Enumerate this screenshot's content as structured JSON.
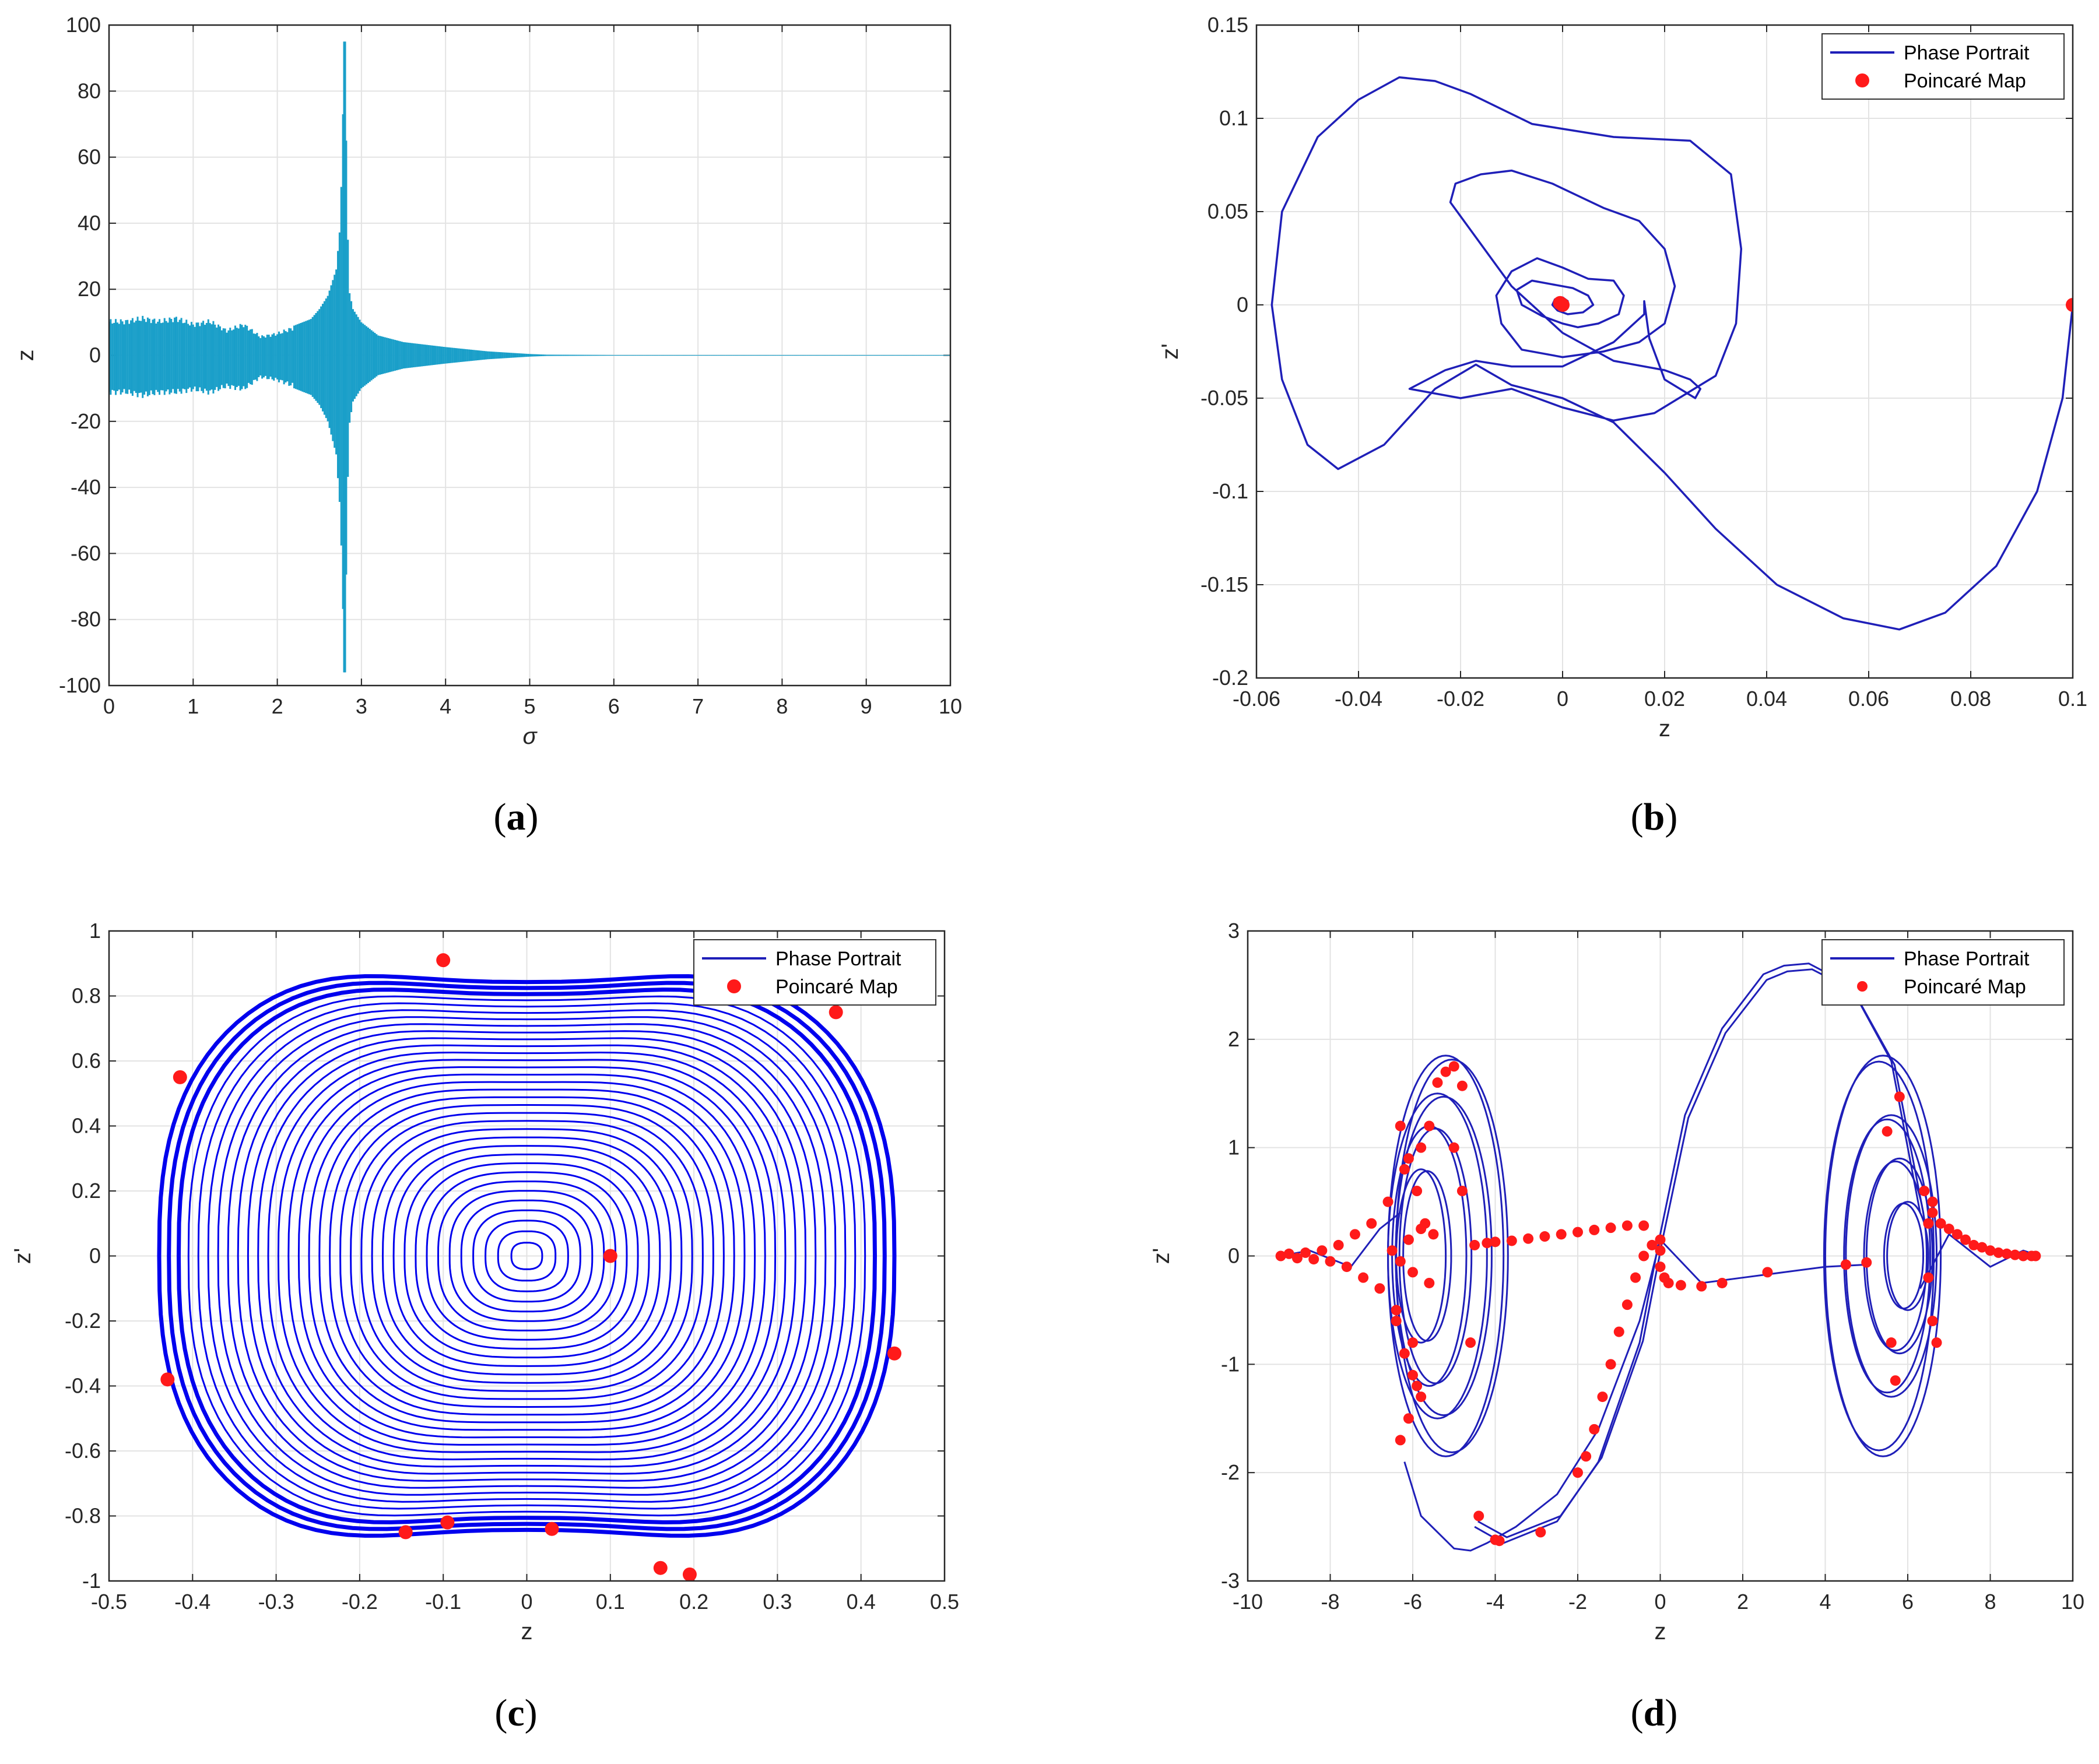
{
  "colors": {
    "phase": "#1f1fb8",
    "phase_dense": "#0000ee",
    "poincare": "#ff1a1a",
    "bifurcation": "#1a9fc9",
    "grid": "#e3e3e3",
    "axis": "#262626"
  },
  "chart_data": [
    {
      "id": "a",
      "type": "line",
      "caption": {
        "open": "(",
        "letter": "a",
        "close": ")"
      },
      "xlabel": "σ",
      "ylabel": "z",
      "xlim": [
        0,
        10
      ],
      "ylim": [
        -100,
        100
      ],
      "xticks": [
        "0",
        "1",
        "2",
        "3",
        "4",
        "5",
        "6",
        "7",
        "8",
        "9",
        "10"
      ],
      "yticks": [
        "100",
        "80",
        "60",
        "40",
        "20",
        "0",
        "-20",
        "-40",
        "-60",
        "-80",
        "-100"
      ],
      "grid": true,
      "legend": null,
      "series": [
        {
          "style": "bifurcation-envelope",
          "x": [
            0.0,
            0.2,
            0.4,
            0.6,
            0.8,
            1.0,
            1.2,
            1.4,
            1.6,
            1.8,
            2.0,
            2.2,
            2.4,
            2.5,
            2.6,
            2.7,
            2.75,
            2.8,
            2.85,
            2.9,
            3.0,
            3.2,
            3.5,
            4.0,
            4.5,
            5.0,
            5.2,
            6.0,
            7.0,
            8.0,
            9.0,
            10.0
          ],
          "upper": [
            11,
            11,
            12,
            11,
            12,
            10,
            11,
            8,
            10,
            6,
            7,
            9,
            11,
            14,
            18,
            26,
            40,
            95,
            20,
            14,
            10,
            6,
            4,
            2.5,
            1.2,
            0.4,
            0.2,
            0.1,
            0.1,
            0.1,
            0.1,
            0.1
          ],
          "lower": [
            -12,
            -12,
            -13,
            -12,
            -12,
            -11,
            -12,
            -10,
            -11,
            -7,
            -8,
            -10,
            -12,
            -15,
            -20,
            -30,
            -48,
            -96,
            -22,
            -14,
            -10,
            -6,
            -4,
            -2.5,
            -1.2,
            -0.4,
            -0.2,
            -0.1,
            -0.1,
            -0.1,
            -0.1,
            -0.1
          ]
        }
      ]
    },
    {
      "id": "b",
      "type": "line",
      "caption": {
        "open": "(",
        "letter": "b",
        "close": ")"
      },
      "xlabel": "z",
      "ylabel": "z'",
      "xlim": [
        -0.06,
        0.1
      ],
      "ylim": [
        -0.2,
        0.15
      ],
      "xticks": [
        "-0.06",
        "-0.04",
        "-0.02",
        "0",
        "0.02",
        "0.04",
        "0.06",
        "0.08",
        "0.1"
      ],
      "yticks": [
        "0.15",
        "0.1",
        "0.05",
        "0",
        "-0.05",
        "-0.1",
        "-0.15",
        "-0.2"
      ],
      "grid": true,
      "legend": {
        "position": "top-right",
        "entries": [
          "Phase Portrait",
          "Poincaré Map"
        ]
      },
      "series": [
        {
          "name": "Phase Portrait",
          "x": [
            0.1,
            0.098,
            0.093,
            0.085,
            0.075,
            0.066,
            0.055,
            0.042,
            0.03,
            0.02,
            0.01,
            0.0,
            -0.01,
            -0.017,
            -0.025,
            -0.035,
            -0.044,
            -0.05,
            -0.055,
            -0.057,
            -0.055,
            -0.048,
            -0.04,
            -0.032,
            -0.025,
            -0.018,
            -0.006,
            0.01,
            0.025,
            0.033,
            0.035,
            0.034,
            0.03,
            0.024,
            0.018,
            0.01,
            0.0,
            -0.01,
            -0.02,
            -0.03,
            -0.023,
            -0.017,
            -0.01,
            0.0,
            0.01,
            0.016,
            0.016,
            0.017,
            0.02,
            0.026,
            0.027,
            0.025,
            0.02,
            0.01,
            0.0,
            -0.01,
            -0.018,
            -0.022,
            -0.021,
            -0.016,
            -0.01,
            -0.002,
            0.008,
            0.015,
            0.02,
            0.022,
            0.02,
            0.015,
            0.008,
            0.0,
            -0.008,
            -0.012,
            -0.013,
            -0.01,
            -0.005,
            0.0,
            0.005,
            0.01,
            0.012,
            0.011,
            0.007,
            0.003,
            0.0,
            -0.004,
            -0.008,
            -0.009,
            -0.006,
            -0.002,
            0.002,
            0.005,
            0.006,
            0.004,
            0.001,
            -0.001,
            -0.002,
            -0.0015,
            0.0,
            0.001,
            0.0
          ],
          "y": [
            0.0,
            -0.05,
            -0.1,
            -0.14,
            -0.165,
            -0.174,
            -0.168,
            -0.15,
            -0.12,
            -0.09,
            -0.063,
            -0.05,
            -0.043,
            -0.032,
            -0.045,
            -0.075,
            -0.088,
            -0.075,
            -0.04,
            0.0,
            0.05,
            0.09,
            0.11,
            0.122,
            0.12,
            0.113,
            0.097,
            0.09,
            0.088,
            0.07,
            0.03,
            -0.01,
            -0.038,
            -0.048,
            -0.058,
            -0.062,
            -0.055,
            -0.045,
            -0.05,
            -0.045,
            -0.035,
            -0.03,
            -0.033,
            -0.033,
            -0.02,
            -0.005,
            0.002,
            -0.018,
            -0.04,
            -0.05,
            -0.045,
            -0.04,
            -0.035,
            -0.03,
            -0.015,
            0.01,
            0.04,
            0.055,
            0.065,
            0.07,
            0.072,
            0.065,
            0.052,
            0.045,
            0.03,
            0.01,
            -0.01,
            -0.02,
            -0.025,
            -0.028,
            -0.024,
            -0.01,
            0.005,
            0.018,
            0.025,
            0.02,
            0.014,
            0.013,
            0.005,
            -0.005,
            -0.01,
            -0.012,
            -0.01,
            -0.006,
            0.0,
            0.008,
            0.013,
            0.011,
            0.009,
            0.005,
            0.0,
            -0.004,
            -0.005,
            -0.003,
            0.0,
            0.003,
            0.004,
            0.002,
            0.0
          ]
        },
        {
          "name": "Poincaré Map",
          "style": "points",
          "x": [
            0.1,
            0.0,
            -0.0005
          ],
          "y": [
            0.0,
            0.0,
            0.001
          ]
        }
      ]
    },
    {
      "id": "c",
      "type": "line",
      "caption": {
        "open": "(",
        "letter": "c",
        "close": ")"
      },
      "xlabel": "z",
      "ylabel": "z'",
      "xlim": [
        -0.5,
        0.5
      ],
      "ylim": [
        -1,
        1
      ],
      "xticks": [
        "-0.5",
        "-0.4",
        "-0.3",
        "-0.2",
        "-0.1",
        "0",
        "0.1",
        "0.2",
        "0.3",
        "0.4",
        "0.5"
      ],
      "yticks": [
        "1",
        "0.8",
        "0.6",
        "0.4",
        "0.2",
        "0",
        "-0.2",
        "-0.4",
        "-0.6",
        "-0.8",
        "-1"
      ],
      "grid": true,
      "legend": {
        "position": "top-right",
        "entries": [
          "Phase Portrait",
          "Poincaré Map"
        ]
      },
      "series": [
        {
          "name": "Phase Portrait",
          "style": "nested-orbits",
          "outer_x_amplitude": 0.44,
          "outer_y_amplitude": 0.98,
          "orbit_count": 34
        },
        {
          "name": "Poincaré Map",
          "style": "points",
          "x": [
            -0.1,
            0.37,
            -0.415,
            0.1,
            0.44,
            -0.43,
            -0.145,
            -0.095,
            0.03,
            0.16,
            0.195
          ],
          "y": [
            0.91,
            0.75,
            0.55,
            0.0,
            -0.3,
            -0.38,
            -0.85,
            -0.82,
            -0.84,
            -0.96,
            -0.98
          ]
        }
      ]
    },
    {
      "id": "d",
      "type": "line",
      "caption": {
        "open": "(",
        "letter": "d",
        "close": ")"
      },
      "xlabel": "z",
      "ylabel": "z'",
      "xlim": [
        -10,
        10
      ],
      "ylim": [
        -3,
        3
      ],
      "xticks": [
        "-10",
        "-8",
        "-6",
        "-4",
        "-2",
        "0",
        "2",
        "4",
        "6",
        "8",
        "10"
      ],
      "yticks": [
        "3",
        "2",
        "1",
        "0",
        "-1",
        "-2",
        "-3"
      ],
      "grid": true,
      "legend": {
        "position": "top-right",
        "entries": [
          "Phase Portrait",
          "Poincaré Map"
        ]
      },
      "series": [
        {
          "name": "Phase Portrait",
          "style": "double-well-chaotic",
          "loops_left": [
            {
              "cx": -5.2,
              "rx": 1.4,
              "ry": 1.85
            },
            {
              "cx": -5.4,
              "rx": 1.2,
              "ry": 1.5
            },
            {
              "cx": -5.6,
              "rx": 0.9,
              "ry": 1.2
            },
            {
              "cx": -5.8,
              "rx": 0.6,
              "ry": 0.8
            }
          ],
          "loops_right": [
            {
              "cx": 5.4,
              "rx": 1.4,
              "ry": 1.85
            },
            {
              "cx": 5.6,
              "rx": 1.1,
              "ry": 1.3
            },
            {
              "cx": 5.8,
              "rx": 0.8,
              "ry": 0.9
            },
            {
              "cx": 6.0,
              "rx": 0.5,
              "ry": 0.5
            }
          ],
          "transfer_x": [
            -4.5,
            -3.8,
            -2.5,
            -1.5,
            -0.5,
            0.0,
            0.6,
            1.5,
            2.5,
            3.0,
            3.6,
            4.6,
            5.6,
            6.3
          ],
          "transfer_y": [
            -2.5,
            -2.65,
            -2.45,
            -1.9,
            -0.8,
            0.2,
            1.3,
            2.1,
            2.6,
            2.68,
            2.7,
            2.5,
            1.8,
            0.4
          ],
          "transfer2_x": [
            -6.2,
            -5.8,
            -5.0,
            -4.6,
            -4.2,
            -3.5,
            -2.5,
            -1.5,
            -0.5,
            0.0,
            1.0,
            2.0,
            3.0,
            4.0,
            5.0
          ],
          "transfer2_y": [
            -1.9,
            -2.4,
            -2.7,
            -2.72,
            -2.65,
            -2.5,
            -2.2,
            -1.6,
            -0.6,
            0.15,
            -0.25,
            -0.2,
            -0.15,
            -0.1,
            -0.08
          ]
        },
        {
          "name": "Poincaré Map",
          "style": "points",
          "x": [
            -9.2,
            -9.0,
            -8.8,
            -8.6,
            -8.4,
            -8.2,
            -8.0,
            -7.8,
            -7.6,
            -7.4,
            -7.2,
            -7.0,
            -6.8,
            -6.6,
            -6.4,
            -6.2,
            -6.0,
            -5.8,
            -5.6,
            -5.4,
            -5.2,
            -5.0,
            -4.8,
            -4.5,
            -4.2,
            -4.0,
            -3.6,
            -3.2,
            -2.8,
            -2.4,
            -2.0,
            -1.6,
            -1.2,
            -0.8,
            -0.4,
            -6.3,
            -6.1,
            -5.9,
            -5.7,
            -5.5,
            -6.4,
            -6.2,
            -6.0,
            -5.8,
            -6.3,
            -6.1,
            -5.9,
            -5.0,
            -4.8,
            -4.6,
            -6.5,
            -6.3,
            -6.1,
            -6.0,
            -5.8,
            -5.6,
            -4.0,
            -4.4,
            -3.9,
            -2.9,
            -2.0,
            -1.8,
            -1.6,
            -1.4,
            -1.2,
            -1.0,
            -0.8,
            -0.6,
            -0.4,
            -0.2,
            0.0,
            0.0,
            0.0,
            0.1,
            0.2,
            0.5,
            1.0,
            1.5,
            2.6,
            4.5,
            5.0,
            5.5,
            5.8,
            5.6,
            5.7,
            6.4,
            6.6,
            6.8,
            7.0,
            7.2,
            7.4,
            7.6,
            7.8,
            8.0,
            8.2,
            8.4,
            8.6,
            8.8,
            9.0,
            9.1,
            6.5,
            6.6,
            6.7,
            6.5,
            6.6
          ],
          "y": [
            0.0,
            0.02,
            -0.02,
            0.03,
            -0.03,
            0.05,
            -0.05,
            0.1,
            -0.1,
            0.2,
            -0.2,
            0.3,
            -0.3,
            0.5,
            -0.5,
            0.8,
            -0.8,
            1.0,
            1.2,
            1.6,
            1.7,
            1.75,
            1.57,
            0.1,
            0.12,
            0.13,
            0.14,
            0.16,
            0.18,
            0.2,
            0.22,
            0.24,
            0.26,
            0.28,
            0.28,
            1.2,
            0.9,
            0.6,
            0.3,
            0.2,
            -0.6,
            -0.9,
            -1.1,
            -1.3,
            -1.7,
            -1.5,
            -1.2,
            1.0,
            0.6,
            -0.8,
            0.05,
            -0.05,
            0.15,
            -0.15,
            0.25,
            -0.25,
            -2.62,
            -2.4,
            -2.63,
            -2.55,
            -2.0,
            -1.85,
            -1.6,
            -1.3,
            -1.0,
            -0.7,
            -0.45,
            -0.2,
            0.0,
            0.1,
            0.15,
            -0.1,
            0.05,
            -0.2,
            -0.25,
            -0.27,
            -0.28,
            -0.25,
            -0.15,
            -0.08,
            -0.06,
            1.15,
            1.47,
            -0.8,
            -1.15,
            0.6,
            0.5,
            0.3,
            0.25,
            0.2,
            0.15,
            0.1,
            0.08,
            0.05,
            0.03,
            0.02,
            0.01,
            0.0,
            0.0,
            0.0,
            -0.2,
            -0.6,
            -0.8,
            0.3,
            0.4
          ]
        }
      ]
    }
  ]
}
